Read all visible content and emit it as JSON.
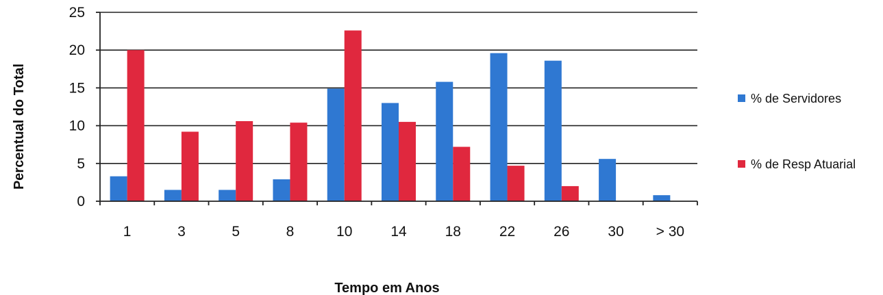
{
  "chart_data": {
    "type": "bar",
    "title": "",
    "xlabel": "Tempo em Anos",
    "ylabel": "Percentual do Total",
    "categories": [
      "1",
      "3",
      "5",
      "8",
      "10",
      "14",
      "18",
      "22",
      "26",
      "30",
      "> 30"
    ],
    "series": [
      {
        "name": "% de Servidores",
        "color": "#2f78d2",
        "values": [
          3.3,
          1.5,
          1.5,
          2.9,
          14.9,
          13.0,
          15.8,
          19.6,
          18.6,
          5.6,
          0.8
        ]
      },
      {
        "name": "% de Resp Atuarial",
        "color": "#e0283e",
        "values": [
          20.0,
          9.2,
          10.6,
          10.4,
          22.6,
          10.5,
          7.2,
          4.7,
          2.0,
          0.0,
          0.0
        ]
      }
    ],
    "ylim": [
      0,
      25
    ],
    "yticks": [
      0,
      5,
      10,
      15,
      20,
      25
    ],
    "grid": true,
    "legend_position": "right"
  }
}
